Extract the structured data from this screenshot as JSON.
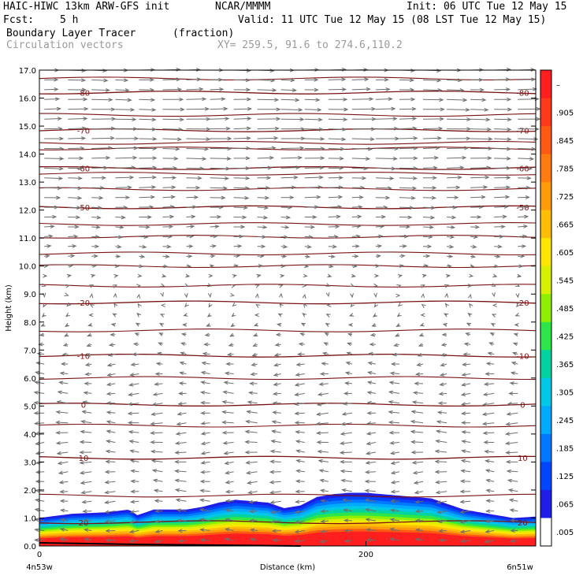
{
  "header": {
    "title_left": "HAIC-HIWC 13km ARW-GFS init",
    "org": "NCAR/MMMM",
    "init": "Init: 06 UTC Tue 12 May 15",
    "fcst_label": "Fcst:",
    "fcst_value": "5 h",
    "valid": "Valid: 11 UTC Tue 12 May 15 (08 LST Tue 12 May 15)",
    "field": "Boundary Layer Tracer",
    "units": "(fraction)",
    "overlay": "Circulation vectors",
    "xy": "XY= 259.5, 91.6 to 274.6,110.2"
  },
  "chart_data": {
    "type": "heatmap",
    "xlabel": "Distance (km)",
    "ylabel": "Height (km)",
    "xlim": [
      0,
      304
    ],
    "ylim": [
      0,
      17
    ],
    "x_ticks": [
      {
        "value": 0,
        "label": "0"
      },
      {
        "value": 200,
        "label": "200"
      }
    ],
    "x_end_labels": {
      "left": "4n53w",
      "right": "6n51w"
    },
    "y_ticks": [
      "0.0",
      "1.0",
      "2.0",
      "3.0",
      "4.0",
      "5.0",
      "6.0",
      "7.0",
      "8.0",
      "9.0",
      "10.0",
      "11.0",
      "12.0",
      "13.0",
      "14.0",
      "15.0",
      "16.0",
      "17.0"
    ],
    "colorbar": {
      "labels": [
        "–",
        ".905",
        ".845",
        ".785",
        ".725",
        ".665",
        ".605",
        ".545",
        ".485",
        ".425",
        ".365",
        ".305",
        ".245",
        ".185",
        ".125",
        ".065",
        ".005"
      ],
      "colors": [
        "#ff1f1f",
        "#ff3a1a",
        "#ff5a14",
        "#ff7a0f",
        "#ff9a0a",
        "#ffbe05",
        "#ffe600",
        "#d8f000",
        "#8ef000",
        "#2ee64a",
        "#00d2a0",
        "#00c8e6",
        "#00aaff",
        "#0078ff",
        "#0046ff",
        "#1e1ee6",
        "#ffffff"
      ]
    },
    "tracer_top_profile": {
      "x": [
        0,
        20,
        40,
        55,
        60,
        70,
        80,
        90,
        100,
        110,
        120,
        130,
        140,
        150,
        160,
        170,
        180,
        190,
        200,
        210,
        220,
        230,
        240,
        250,
        260,
        270,
        280,
        290,
        304
      ],
      "top_km": [
        1.0,
        1.15,
        1.2,
        1.3,
        1.1,
        1.3,
        1.3,
        1.3,
        1.4,
        1.55,
        1.65,
        1.6,
        1.55,
        1.35,
        1.45,
        1.75,
        1.85,
        1.9,
        1.9,
        1.85,
        1.8,
        1.75,
        1.7,
        1.5,
        1.3,
        1.2,
        1.1,
        1.0,
        1.05
      ]
    },
    "temperature_contours_c": [
      {
        "value": -80,
        "h": 16.2,
        "label": "-80"
      },
      {
        "value": -70,
        "h": 14.85,
        "label": "-70"
      },
      {
        "value": -60,
        "h": 13.5,
        "label": "-60"
      },
      {
        "value": -50,
        "h": 12.1,
        "label": "-50"
      },
      {
        "value": -20,
        "h": 8.7,
        "label": "-20"
      },
      {
        "value": -10,
        "h": 6.8,
        "label": "-10"
      },
      {
        "value": 0,
        "h": 5.05,
        "label": "0"
      },
      {
        "value": 10,
        "h": 3.15,
        "label": "10"
      },
      {
        "value": 20,
        "h": 0.85,
        "label": "20"
      }
    ],
    "other_isotherms_km": [
      16.7,
      15.4,
      14.4,
      14.2,
      13.3,
      12.75,
      11.5,
      11.05,
      10.45,
      10.0,
      9.3,
      7.7,
      6.0,
      4.3,
      1.8
    ],
    "wind_profile_u": [
      {
        "h": 16.5,
        "u": 2.2
      },
      {
        "h": 15.5,
        "u": 3.0
      },
      {
        "h": 14.5,
        "u": 3.0
      },
      {
        "h": 13.5,
        "u": 2.5
      },
      {
        "h": 12.5,
        "u": 2.0
      },
      {
        "h": 11.5,
        "u": 1.4
      },
      {
        "h": 10.5,
        "u": 0.9
      },
      {
        "h": 9.5,
        "u": 0.3
      },
      {
        "h": 8.5,
        "u": -0.2
      },
      {
        "h": 7.5,
        "u": -0.6
      },
      {
        "h": 6.5,
        "u": -1.0
      },
      {
        "h": 5.5,
        "u": -1.3
      },
      {
        "h": 4.5,
        "u": -1.5
      },
      {
        "h": 3.5,
        "u": -1.5
      },
      {
        "h": 2.5,
        "u": -1.4
      },
      {
        "h": 1.5,
        "u": -1.3
      },
      {
        "h": 0.5,
        "u": -1.2
      }
    ]
  }
}
